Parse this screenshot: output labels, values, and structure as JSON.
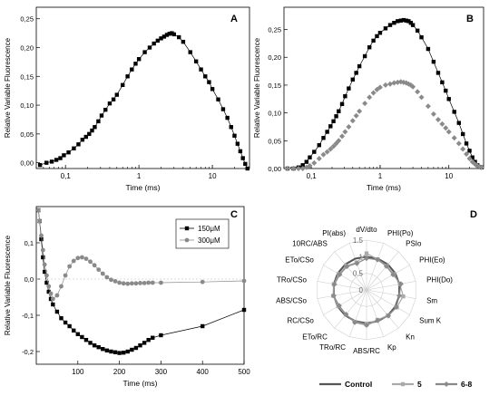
{
  "chart_data": [
    {
      "panel": "A",
      "type": "scatter",
      "xscale": "log",
      "xlabel": "Time (ms)",
      "ylabel": "Relative Variable Fluorescence",
      "xlim": [
        0.04,
        32
      ],
      "ylim": [
        -0.01,
        0.27
      ],
      "xticks": [
        {
          "v": 0.1,
          "t": "0,1"
        },
        {
          "v": 1,
          "t": "1"
        },
        {
          "v": 10,
          "t": "10"
        }
      ],
      "yticks": [
        {
          "v": 0,
          "t": "0,00"
        },
        {
          "v": 0.05,
          "t": "0,05"
        },
        {
          "v": 0.1,
          "t": "0,10"
        },
        {
          "v": 0.15,
          "t": "0,15"
        },
        {
          "v": 0.2,
          "t": "0,20"
        },
        {
          "v": 0.25,
          "t": "0,25"
        }
      ],
      "series": [
        {
          "marker": "square",
          "color": "#000000",
          "line": true,
          "x": [
            0.045,
            0.055,
            0.065,
            0.075,
            0.085,
            0.095,
            0.11,
            0.13,
            0.15,
            0.17,
            0.19,
            0.21,
            0.23,
            0.25,
            0.28,
            0.31,
            0.35,
            0.4,
            0.45,
            0.5,
            0.6,
            0.7,
            0.8,
            0.9,
            1.0,
            1.2,
            1.4,
            1.6,
            1.8,
            2.0,
            2.2,
            2.4,
            2.6,
            2.8,
            3.0,
            3.5,
            4.0,
            5.0,
            6.0,
            7.0,
            8.0,
            9.0,
            10,
            12,
            14,
            16,
            18,
            20,
            22,
            24,
            26,
            28,
            30
          ],
          "y": [
            -0.004,
            0.0,
            0.002,
            0.005,
            0.008,
            0.013,
            0.018,
            0.025,
            0.032,
            0.04,
            0.045,
            0.05,
            0.056,
            0.062,
            0.072,
            0.082,
            0.092,
            0.103,
            0.11,
            0.118,
            0.135,
            0.15,
            0.162,
            0.172,
            0.18,
            0.192,
            0.2,
            0.207,
            0.212,
            0.216,
            0.219,
            0.222,
            0.224,
            0.225,
            0.223,
            0.218,
            0.21,
            0.192,
            0.176,
            0.162,
            0.15,
            0.14,
            0.128,
            0.11,
            0.093,
            0.078,
            0.062,
            0.047,
            0.033,
            0.02,
            0.008,
            -0.002,
            -0.01
          ]
        }
      ]
    },
    {
      "panel": "B",
      "type": "scatter",
      "xscale": "log",
      "xlabel": "Time (ms)",
      "ylabel": "Relative Variable Fluorescence",
      "xlim": [
        0.04,
        32
      ],
      "ylim": [
        0,
        0.29
      ],
      "xticks": [
        {
          "v": 0.1,
          "t": "0,1"
        },
        {
          "v": 1,
          "t": "1"
        },
        {
          "v": 10,
          "t": "10"
        }
      ],
      "yticks": [
        {
          "v": 0,
          "t": "0,00"
        },
        {
          "v": 0.05,
          "t": "0,05"
        },
        {
          "v": 0.1,
          "t": "0,10"
        },
        {
          "v": 0.15,
          "t": "0,15"
        },
        {
          "v": 0.2,
          "t": "0,20"
        },
        {
          "v": 0.25,
          "t": "0,25"
        }
      ],
      "series": [
        {
          "marker": "square",
          "color": "#000000",
          "line": true,
          "x": [
            0.045,
            0.055,
            0.065,
            0.075,
            0.085,
            0.095,
            0.11,
            0.13,
            0.15,
            0.17,
            0.19,
            0.21,
            0.23,
            0.25,
            0.28,
            0.31,
            0.35,
            0.4,
            0.45,
            0.5,
            0.6,
            0.7,
            0.8,
            0.9,
            1.0,
            1.2,
            1.4,
            1.6,
            1.8,
            2.0,
            2.2,
            2.4,
            2.6,
            2.8,
            3.0,
            3.5,
            4.0,
            5.0,
            6.0,
            7.0,
            8.0,
            9.0,
            10,
            12,
            14,
            16,
            18,
            20,
            22,
            24,
            26,
            28,
            30
          ],
          "y": [
            0.0,
            0.0,
            0.002,
            0.006,
            0.012,
            0.02,
            0.03,
            0.042,
            0.055,
            0.066,
            0.076,
            0.085,
            0.094,
            0.103,
            0.116,
            0.13,
            0.144,
            0.16,
            0.172,
            0.184,
            0.202,
            0.218,
            0.23,
            0.238,
            0.244,
            0.252,
            0.258,
            0.262,
            0.265,
            0.266,
            0.267,
            0.266,
            0.265,
            0.262,
            0.258,
            0.248,
            0.236,
            0.215,
            0.192,
            0.172,
            0.155,
            0.14,
            0.125,
            0.102,
            0.082,
            0.062,
            0.045,
            0.032,
            0.02,
            0.012,
            0.006,
            0.003,
            0.002
          ]
        },
        {
          "marker": "diamond",
          "color": "#8a8a8a",
          "line": false,
          "x": [
            0.045,
            0.055,
            0.065,
            0.075,
            0.085,
            0.095,
            0.11,
            0.13,
            0.15,
            0.17,
            0.19,
            0.21,
            0.23,
            0.25,
            0.28,
            0.31,
            0.35,
            0.4,
            0.45,
            0.5,
            0.6,
            0.7,
            0.8,
            0.9,
            1.0,
            1.2,
            1.4,
            1.6,
            1.8,
            2.0,
            2.2,
            2.4,
            2.6,
            2.8,
            3.0,
            3.5,
            4.0,
            5.0,
            6.0,
            7.0,
            8.0,
            9.0,
            10,
            12,
            14,
            16,
            18,
            20,
            22,
            24,
            26,
            28,
            30
          ],
          "y": [
            0.0,
            0.0,
            0.0,
            0.0,
            0.002,
            0.005,
            0.01,
            0.018,
            0.025,
            0.03,
            0.035,
            0.04,
            0.045,
            0.05,
            0.058,
            0.066,
            0.075,
            0.086,
            0.095,
            0.103,
            0.117,
            0.128,
            0.136,
            0.142,
            0.146,
            0.15,
            0.152,
            0.154,
            0.155,
            0.156,
            0.155,
            0.154,
            0.152,
            0.15,
            0.147,
            0.138,
            0.128,
            0.112,
            0.098,
            0.088,
            0.08,
            0.073,
            0.066,
            0.055,
            0.045,
            0.035,
            0.026,
            0.018,
            0.012,
            0.008,
            0.005,
            0.003,
            0.002
          ]
        }
      ]
    },
    {
      "panel": "C",
      "type": "scatter",
      "xlabel": "Time (ms)",
      "ylabel": "Relative Variable Fluorescence",
      "xlim": [
        0,
        500
      ],
      "ylim": [
        -0.235,
        0.2
      ],
      "xticks": [
        {
          "v": 100,
          "t": "100"
        },
        {
          "v": 200,
          "t": "200"
        },
        {
          "v": 300,
          "t": "300"
        },
        {
          "v": 400,
          "t": "400"
        },
        {
          "v": 500,
          "t": "500"
        }
      ],
      "yticks": [
        {
          "v": -0.2,
          "t": "-0,2"
        },
        {
          "v": -0.1,
          "t": "-0,1"
        },
        {
          "v": 0,
          "t": "0,0"
        },
        {
          "v": 0.1,
          "t": "0,1"
        }
      ],
      "series": [
        {
          "name": "150μM",
          "marker": "square",
          "color": "#000000",
          "line": true,
          "x": [
            5,
            8,
            12,
            16,
            20,
            25,
            30,
            35,
            40,
            50,
            60,
            70,
            80,
            90,
            100,
            110,
            120,
            130,
            140,
            150,
            160,
            170,
            180,
            190,
            200,
            210,
            220,
            230,
            240,
            250,
            260,
            270,
            280,
            300,
            400,
            500
          ],
          "y": [
            0.19,
            0.16,
            0.11,
            0.06,
            0.02,
            -0.01,
            -0.035,
            -0.055,
            -0.07,
            -0.09,
            -0.108,
            -0.12,
            -0.13,
            -0.142,
            -0.152,
            -0.16,
            -0.168,
            -0.176,
            -0.183,
            -0.188,
            -0.193,
            -0.197,
            -0.2,
            -0.202,
            -0.204,
            -0.203,
            -0.2,
            -0.195,
            -0.19,
            -0.183,
            -0.176,
            -0.168,
            -0.162,
            -0.155,
            -0.13,
            -0.085
          ]
        },
        {
          "name": "300μM",
          "marker": "circle",
          "color": "#8a8a8a",
          "line": true,
          "x": [
            5,
            8,
            12,
            16,
            20,
            25,
            30,
            35,
            40,
            50,
            60,
            70,
            80,
            90,
            100,
            110,
            120,
            130,
            140,
            150,
            160,
            170,
            180,
            190,
            200,
            210,
            220,
            230,
            240,
            250,
            260,
            270,
            280,
            300,
            400,
            500
          ],
          "y": [
            0.19,
            0.16,
            0.12,
            0.08,
            0.04,
            0.01,
            -0.02,
            -0.04,
            -0.055,
            -0.045,
            -0.02,
            0.01,
            0.035,
            0.05,
            0.058,
            0.06,
            0.056,
            0.048,
            0.038,
            0.026,
            0.015,
            0.005,
            -0.002,
            -0.006,
            -0.01,
            -0.012,
            -0.013,
            -0.012,
            -0.012,
            -0.011,
            -0.011,
            -0.01,
            -0.01,
            -0.01,
            -0.008,
            -0.005
          ]
        }
      ]
    },
    {
      "panel": "D",
      "type": "radar",
      "axes": [
        "dV/dto",
        "PHI(Po)",
        "PSIo",
        "PHI(Eo)",
        "PHI(Do)",
        "Sm",
        "Sum K",
        "Kn",
        "Kp",
        "ABS/RC",
        "TRo/RC",
        "ETo/RC",
        "RC/CSo",
        "ABS/CSo",
        "TRo/CSo",
        "ETo/CSo",
        "10RC/ABS",
        "PI(abs)"
      ],
      "rticks": [
        {
          "v": 0,
          "t": "0"
        },
        {
          "v": 0.5,
          "t": "0.5"
        },
        {
          "v": 1,
          "t": "1"
        },
        {
          "v": 1.5,
          "t": "1.5"
        }
      ],
      "rmax": 1.5,
      "series": [
        {
          "name": "Control",
          "color": "#555555",
          "marker": "none",
          "values": [
            1,
            1,
            1,
            1,
            1,
            1,
            1,
            1,
            1,
            1,
            1,
            1,
            1,
            1,
            1,
            1,
            1,
            1
          ]
        },
        {
          "name": "5",
          "color": "#aaaaaa",
          "marker": "square",
          "values": [
            1.1,
            0.98,
            0.95,
            0.95,
            1.02,
            1.12,
            1.05,
            1.0,
            0.96,
            1.04,
            1.02,
            0.97,
            0.98,
            1.02,
            1.0,
            0.96,
            0.95,
            0.88
          ]
        },
        {
          "name": "6-8",
          "color": "#8a8a8a",
          "marker": "diamond",
          "values": [
            0.95,
            0.97,
            0.93,
            0.92,
            1.05,
            1.0,
            1.03,
            1.02,
            0.98,
            1.06,
            1.04,
            0.96,
            0.95,
            1.0,
            0.98,
            0.93,
            0.92,
            0.85
          ]
        }
      ]
    }
  ]
}
